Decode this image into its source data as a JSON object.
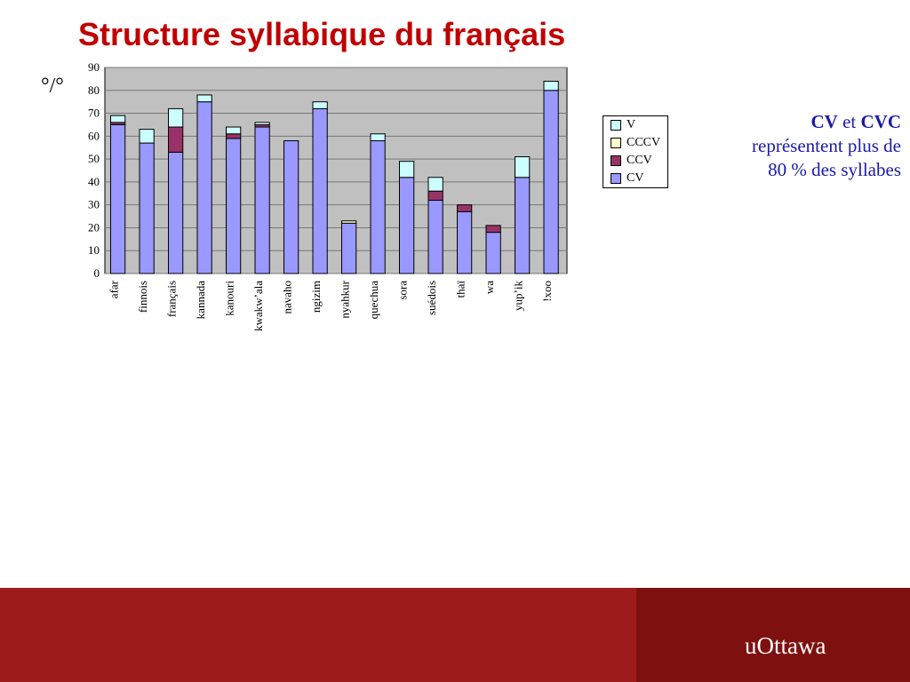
{
  "title": "Structure syllabique du français",
  "unit_label": "°/°",
  "chart_data": [
    {
      "type": "bar",
      "categories": [
        "afar",
        "finnois",
        "français",
        "kannada",
        "kanouri",
        "kwakw’ala",
        "navaho",
        "ngizim",
        "nyahkur",
        "quechua",
        "sora",
        "suédois",
        "thaï",
        "wa",
        "yup’ik",
        "!xoo"
      ],
      "ylim": [
        0,
        90
      ],
      "yticks": [
        0,
        10,
        20,
        30,
        40,
        50,
        60,
        70,
        80,
        90
      ],
      "series": [
        {
          "name": "CV",
          "color": "#9999ff",
          "values": [
            65,
            57,
            53,
            75,
            59,
            64,
            58,
            72,
            22,
            58,
            42,
            32,
            27,
            18,
            42,
            80
          ]
        },
        {
          "name": "CCV",
          "color": "#993366",
          "values": [
            1,
            0,
            11,
            0,
            2,
            1,
            0,
            0,
            0,
            0,
            0,
            4,
            3,
            3,
            0,
            0
          ]
        },
        {
          "name": "CCCV",
          "color": "#ffffcc",
          "values": [
            0,
            0,
            0,
            0,
            0,
            0,
            0,
            0,
            1,
            0,
            0,
            0,
            0,
            0,
            0,
            0
          ]
        },
        {
          "name": "V",
          "color": "#ccffff",
          "values": [
            3,
            6,
            8,
            3,
            3,
            1,
            0,
            3,
            0,
            3,
            7,
            6,
            0,
            0,
            9,
            4
          ]
        }
      ]
    }
  ]
}
